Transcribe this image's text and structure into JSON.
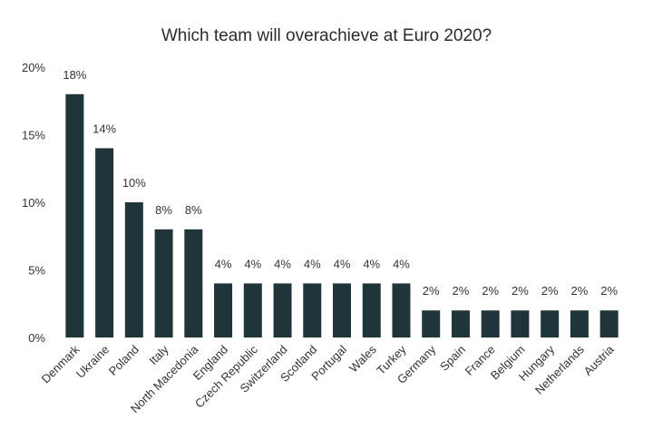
{
  "chart_data": {
    "type": "bar",
    "title": "Which team will overachieve at Euro 2020?",
    "xlabel": "",
    "ylabel": "",
    "ylim": [
      0,
      20
    ],
    "yticks": [
      0,
      5,
      10,
      15,
      20
    ],
    "ytick_labels": [
      "0%",
      "5%",
      "10%",
      "15%",
      "20%"
    ],
    "grid": false,
    "categories": [
      "Denmark",
      "Ukraine",
      "Poland",
      "Italy",
      "North Macedonia",
      "England",
      "Czech Republic",
      "Switzerland",
      "Scotland",
      "Portugal",
      "Wales",
      "Turkey",
      "Germany",
      "Spain",
      "France",
      "Belgium",
      "Hungary",
      "Netherlands",
      "Austria"
    ],
    "values": [
      18,
      14,
      10,
      8,
      8,
      4,
      4,
      4,
      4,
      4,
      4,
      4,
      2,
      2,
      2,
      2,
      2,
      2,
      2
    ],
    "data_labels": [
      "18%",
      "14%",
      "10%",
      "8%",
      "8%",
      "4%",
      "4%",
      "4%",
      "4%",
      "4%",
      "4%",
      "4%",
      "2%",
      "2%",
      "2%",
      "2%",
      "2%",
      "2%",
      "2%"
    ],
    "bar_color": "#1f3539"
  }
}
